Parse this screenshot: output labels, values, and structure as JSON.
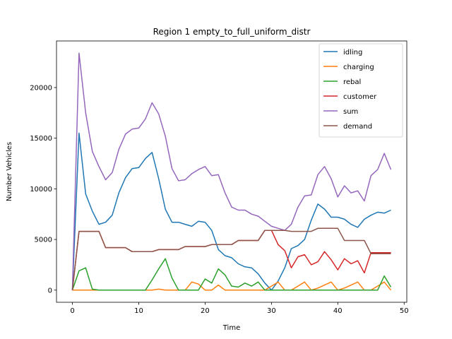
{
  "chart_data": {
    "type": "line",
    "title": "Region 1 empty_to_full_uniform_distr",
    "xlabel": "Time",
    "ylabel": "Number Vehicles",
    "xlim": [
      -2.4,
      50.4
    ],
    "ylim": [
      -1200,
      24600
    ],
    "xticks": [
      0,
      10,
      20,
      30,
      40,
      50
    ],
    "yticks": [
      0,
      5000,
      10000,
      15000,
      20000
    ],
    "grid": false,
    "legend_position": "top-right",
    "x": [
      0,
      1,
      2,
      3,
      4,
      5,
      6,
      7,
      8,
      9,
      10,
      11,
      12,
      13,
      14,
      15,
      16,
      17,
      18,
      19,
      20,
      21,
      22,
      23,
      24,
      25,
      26,
      27,
      28,
      29,
      30,
      31,
      32,
      33,
      34,
      35,
      36,
      37,
      38,
      39,
      40,
      41,
      42,
      43,
      44,
      45,
      46,
      47,
      48
    ],
    "series": [
      {
        "name": "idling",
        "color": "#1f77b4",
        "values": [
          0,
          15500,
          9500,
          7800,
          6500,
          6700,
          7400,
          9600,
          11100,
          12000,
          12100,
          13000,
          13600,
          11000,
          8000,
          6700,
          6700,
          6500,
          6300,
          6800,
          6700,
          5900,
          4000,
          3400,
          3200,
          2600,
          2300,
          2200,
          1600,
          700,
          0,
          900,
          2200,
          4100,
          4400,
          5000,
          6900,
          8500,
          8000,
          7200,
          7200,
          7000,
          6500,
          6200,
          7000,
          7400,
          7700,
          7600,
          7900
        ]
      },
      {
        "name": "charging",
        "color": "#ff7f0e",
        "values": [
          0,
          0,
          0,
          0,
          0,
          0,
          0,
          0,
          0,
          0,
          0,
          0,
          0,
          100,
          0,
          0,
          0,
          0,
          800,
          600,
          0,
          0,
          500,
          0,
          0,
          0,
          0,
          0,
          0,
          0,
          400,
          800,
          0,
          0,
          400,
          800,
          0,
          200,
          500,
          800,
          0,
          200,
          500,
          800,
          0,
          0,
          400,
          800,
          0
        ]
      },
      {
        "name": "rebal",
        "color": "#2ca02c",
        "values": [
          0,
          1900,
          2200,
          100,
          0,
          0,
          0,
          0,
          0,
          0,
          0,
          0,
          1000,
          2100,
          3100,
          1200,
          0,
          0,
          0,
          0,
          1100,
          700,
          2100,
          1500,
          400,
          300,
          700,
          400,
          800,
          0,
          0,
          0,
          0,
          0,
          0,
          0,
          0,
          0,
          0,
          0,
          0,
          0,
          0,
          0,
          0,
          0,
          0,
          1400,
          300
        ]
      },
      {
        "name": "customer",
        "color": "#d62728",
        "values": [
          0,
          5800,
          5800,
          5800,
          5800,
          4200,
          4200,
          4200,
          4200,
          3800,
          3800,
          3800,
          3800,
          4000,
          4000,
          4000,
          4000,
          4300,
          4300,
          4300,
          4300,
          4500,
          4500,
          4500,
          4500,
          4900,
          4900,
          4900,
          4900,
          5900,
          5900,
          4500,
          3900,
          2200,
          3300,
          3500,
          2500,
          2800,
          3800,
          3000,
          2000,
          3100,
          2600,
          2900,
          1700,
          3700,
          3700,
          3700,
          3700
        ]
      },
      {
        "name": "sum",
        "color": "#9467bd",
        "values": [
          0,
          23400,
          17500,
          13700,
          12200,
          10900,
          11600,
          13900,
          15400,
          15900,
          16000,
          16900,
          18500,
          17400,
          15200,
          12000,
          10800,
          10900,
          11500,
          11900,
          12200,
          11300,
          11400,
          9600,
          8200,
          7900,
          7900,
          7500,
          7300,
          6800,
          6300,
          6100,
          5900,
          6500,
          8200,
          9300,
          9400,
          11400,
          12200,
          11000,
          9200,
          10300,
          9600,
          9800,
          8800,
          11300,
          11900,
          13500,
          11900
        ]
      },
      {
        "name": "demand",
        "color": "#8c564b",
        "values": [
          0,
          5800,
          5800,
          5800,
          5800,
          4200,
          4200,
          4200,
          4200,
          3800,
          3800,
          3800,
          3800,
          4000,
          4000,
          4000,
          4000,
          4300,
          4300,
          4300,
          4300,
          4500,
          4500,
          4500,
          4500,
          4900,
          4900,
          4900,
          4900,
          5900,
          5900,
          5900,
          5900,
          5800,
          5800,
          5800,
          5800,
          6100,
          6100,
          6100,
          6100,
          4900,
          4900,
          4900,
          4900,
          3600,
          3600,
          3600,
          3600
        ]
      }
    ]
  }
}
